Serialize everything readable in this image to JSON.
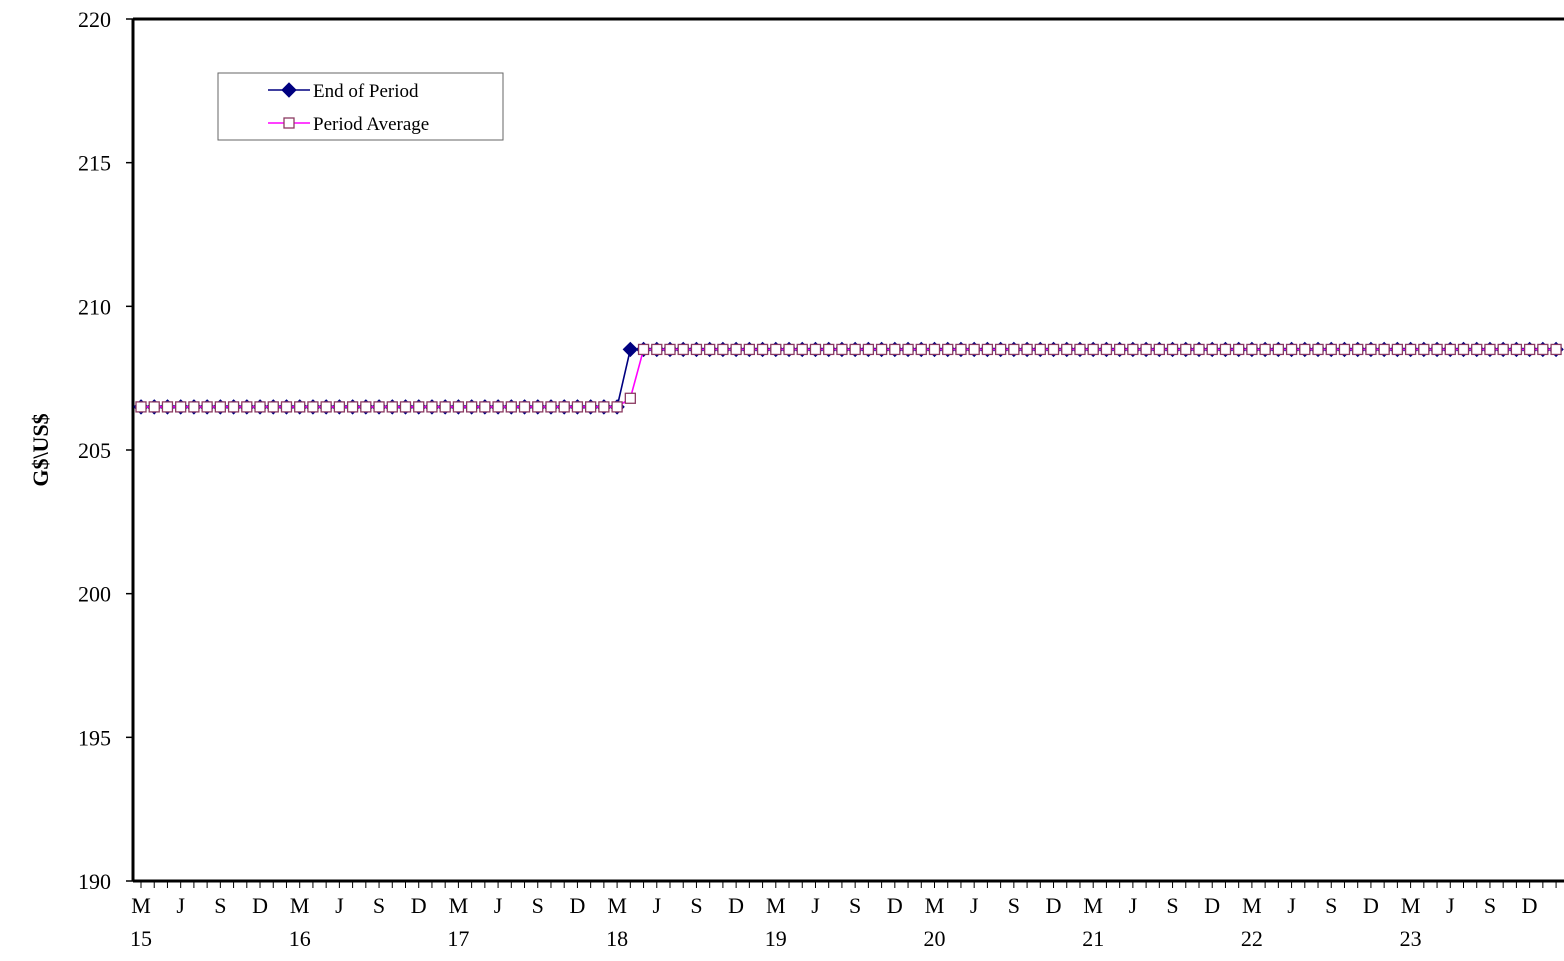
{
  "chart_data": {
    "type": "line",
    "ylabel": "G$\\US$",
    "ylim": [
      190,
      220
    ],
    "yticks": [
      190,
      195,
      200,
      205,
      210,
      215,
      220
    ],
    "x_month_labels": [
      "M",
      "J",
      "S",
      "D"
    ],
    "x_year_labels": [
      "15",
      "16",
      "17",
      "18",
      "19",
      "20",
      "21",
      "22",
      "23"
    ],
    "x_months_total": 108,
    "legend": {
      "position": "top-left",
      "entries": [
        "End of Period",
        "Period Average"
      ]
    },
    "series": [
      {
        "name": "End of Period",
        "color": "#000080",
        "marker": "diamond",
        "segments": [
          {
            "from_month": 1,
            "to_month": 37,
            "value": 206.5
          },
          {
            "from_month": 38,
            "to_month": 108,
            "value": 208.5
          }
        ]
      },
      {
        "name": "Period Average",
        "color": "#ff00ff",
        "marker": "square-open",
        "segments": [
          {
            "from_month": 1,
            "to_month": 37,
            "value": 206.5
          },
          {
            "from_month": 38,
            "to_month": 38,
            "value": 206.8
          },
          {
            "from_month": 39,
            "to_month": 108,
            "value": 208.5
          }
        ]
      }
    ]
  }
}
